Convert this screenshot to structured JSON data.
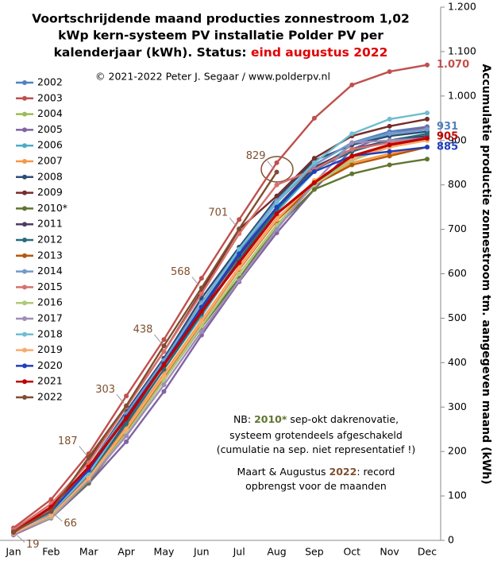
{
  "chart_data": {
    "type": "line",
    "title": [
      "Voortschrijdende  maand  producties  zonnestroom  1,02",
      "kWp  kern-systeem  PV  installatie  Polder  PV  per",
      "kalenderjaar  (kWh).  Status: "
    ],
    "title_highlight": "eind  augustus  2022",
    "subtitle": "© 2021-2022  Peter J. Segaar / www.polderpv.nl",
    "y_label": "Accumulatie productie zonnestroom tm. aangegeven maand (kWh)",
    "annotations": [
      {
        "parts": [
          "NB: ",
          "2010*",
          " sep-okt dakrenovatie,"
        ]
      },
      {
        "parts": [
          "systeem grotendeels afgeschakeld"
        ]
      },
      {
        "parts": [
          "(cumulatie na sep. niet representatief !)"
        ]
      },
      {
        "parts": [
          "Maart & Augustus ",
          "2022",
          ": record"
        ]
      },
      {
        "parts": [
          "opbrengst voor de maanden"
        ]
      }
    ],
    "categories": [
      "Jan",
      "Feb",
      "Mar",
      "Apr",
      "May",
      "Jun",
      "Jul",
      "Aug",
      "Sep",
      "Oct",
      "Nov",
      "Dec"
    ],
    "ylim": [
      0,
      1200
    ],
    "yticks": [
      0,
      100,
      200,
      300,
      400,
      500,
      600,
      700,
      800,
      900,
      {
        "value": 1000,
        "label": "1.000"
      },
      {
        "value": 1100,
        "label": "1.100"
      },
      {
        "value": 1200,
        "label": "1.200"
      }
    ],
    "grid": false,
    "legend": "left",
    "series": [
      {
        "name": "2002",
        "color": "#4f81bd",
        "values": [
          20,
          70,
          160,
          280,
          400,
          530,
          650,
          760,
          845,
          895,
          920,
          931
        ],
        "value_labels": [
          null,
          null,
          null,
          null,
          null,
          null,
          null,
          null,
          null,
          null,
          null,
          "931"
        ]
      },
      {
        "name": "2003",
        "color": "#c0504d",
        "values": [
          28,
          92,
          195,
          325,
          452,
          590,
          722,
          850,
          950,
          1025,
          1055,
          1070
        ],
        "value_labels": [
          null,
          null,
          null,
          null,
          null,
          null,
          null,
          null,
          null,
          null,
          null,
          "1.070"
        ]
      },
      {
        "name": "2004",
        "color": "#9bbb59",
        "values": [
          15,
          55,
          135,
          245,
          365,
          480,
          600,
          710,
          800,
          860,
          890,
          905
        ]
      },
      {
        "name": "2005",
        "color": "#8064a2",
        "values": [
          12,
          50,
          128,
          222,
          335,
          462,
          582,
          692,
          790,
          880,
          915,
          930
        ]
      },
      {
        "name": "2006",
        "color": "#4bacc6",
        "values": [
          18,
          60,
          150,
          265,
          385,
          505,
          630,
          740,
          830,
          890,
          915,
          925
        ]
      },
      {
        "name": "2007",
        "color": "#f79646",
        "values": [
          16,
          58,
          145,
          255,
          375,
          495,
          615,
          725,
          800,
          850,
          870,
          885
        ]
      },
      {
        "name": "2008",
        "color": "#2c4d75",
        "values": [
          22,
          72,
          165,
          290,
          410,
          545,
          660,
          770,
          855,
          890,
          910,
          920
        ]
      },
      {
        "name": "2009",
        "color": "#772c2a",
        "values": [
          20,
          75,
          180,
          300,
          425,
          560,
          700,
          775,
          860,
          910,
          932,
          948
        ]
      },
      {
        "name": "2010*",
        "color": "#5f7530",
        "values": [
          14,
          55,
          130,
          240,
          360,
          480,
          590,
          705,
          790,
          825,
          845,
          858
        ]
      },
      {
        "name": "2011",
        "color": "#4d3b62",
        "values": [
          18,
          62,
          150,
          270,
          395,
          520,
          640,
          750,
          840,
          880,
          900,
          910
        ]
      },
      {
        "name": "2012",
        "color": "#276a7c",
        "values": [
          17,
          60,
          148,
          262,
          385,
          510,
          632,
          745,
          835,
          875,
          900,
          915
        ]
      },
      {
        "name": "2013",
        "color": "#b65708",
        "values": [
          15,
          55,
          140,
          248,
          368,
          490,
          610,
          720,
          800,
          845,
          865,
          885
        ]
      },
      {
        "name": "2014",
        "color": "#729aca",
        "values": [
          20,
          68,
          165,
          285,
          405,
          535,
          655,
          765,
          845,
          895,
          915,
          925
        ]
      },
      {
        "name": "2015",
        "color": "#d9706c",
        "values": [
          24,
          82,
          175,
          300,
          425,
          555,
          690,
          800,
          835,
          880,
          895,
          905
        ]
      },
      {
        "name": "2016",
        "color": "#afc97a",
        "values": [
          14,
          52,
          135,
          240,
          360,
          482,
          600,
          708,
          800,
          855,
          885,
          900
        ]
      },
      {
        "name": "2017",
        "color": "#a08db8",
        "values": [
          13,
          55,
          135,
          235,
          350,
          470,
          585,
          700,
          805,
          895,
          900,
          905
        ]
      },
      {
        "name": "2018",
        "color": "#6fbdd1",
        "values": [
          18,
          62,
          150,
          275,
          400,
          530,
          655,
          760,
          850,
          915,
          948,
          962
        ]
      },
      {
        "name": "2019",
        "color": "#f9ab6b",
        "values": [
          16,
          56,
          140,
          250,
          370,
          492,
          612,
          722,
          810,
          860,
          885,
          900
        ]
      },
      {
        "name": "2020",
        "color": "#1f3fbf",
        "values": [
          19,
          65,
          158,
          278,
          398,
          525,
          645,
          750,
          830,
          865,
          875,
          885
        ],
        "value_labels": [
          null,
          null,
          null,
          null,
          null,
          null,
          null,
          null,
          null,
          null,
          null,
          "885"
        ]
      },
      {
        "name": "2021",
        "color": "#c00000",
        "values": [
          18,
          75,
          165,
          275,
          395,
          515,
          625,
          735,
          805,
          865,
          890,
          905
        ],
        "value_labels": [
          null,
          null,
          null,
          null,
          null,
          null,
          null,
          null,
          null,
          null,
          null,
          "905"
        ]
      },
      {
        "name": "2022",
        "color": "#7f4f30",
        "values": [
          19,
          66,
          187,
          303,
          438,
          568,
          701,
          829,
          null,
          null,
          null,
          null
        ],
        "value_labels": [
          "19",
          "66",
          "187",
          "303",
          "438",
          "568",
          "701",
          "829",
          null,
          null,
          null,
          null
        ]
      }
    ]
  }
}
